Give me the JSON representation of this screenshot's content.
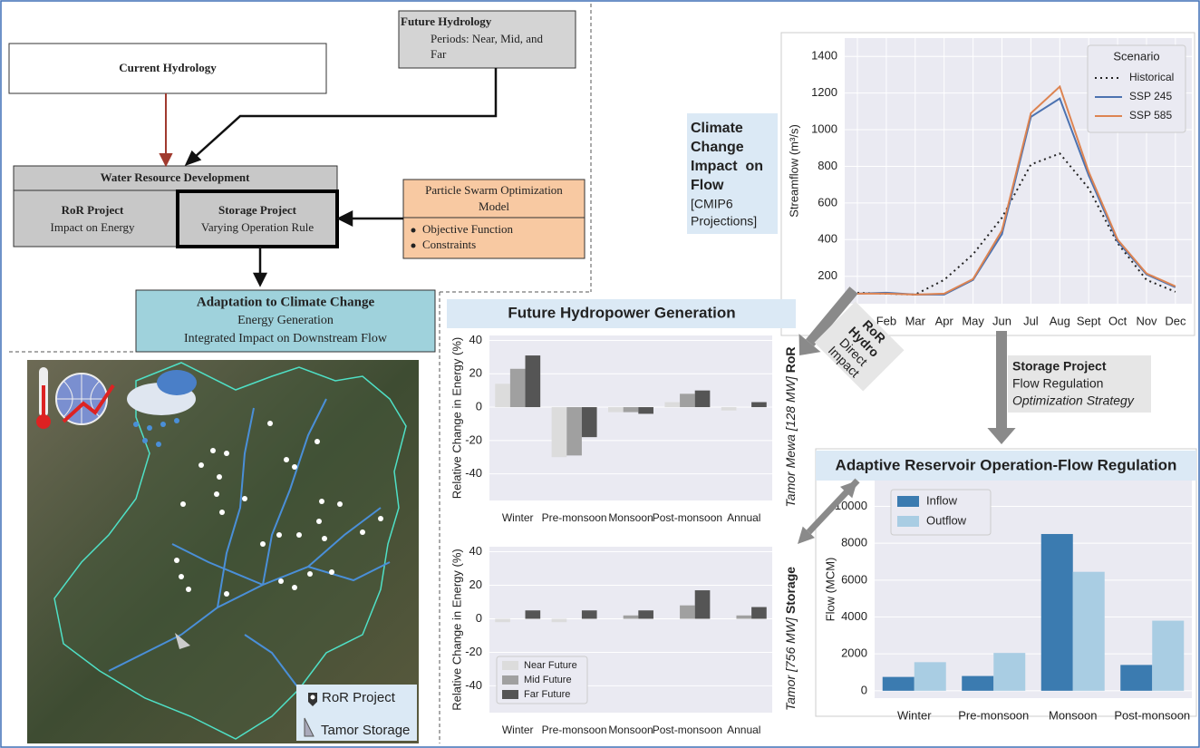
{
  "diagram": {
    "current_hydrology": "Current Hydrology",
    "future_hydrology": {
      "title": "Future Hydrology",
      "lines": [
        "Periods: Near, Mid, and",
        "Far"
      ]
    },
    "water_resource": {
      "title": "Water Resource Development",
      "ror": {
        "title": "RoR Project",
        "text": "Impact on Energy"
      },
      "storage": {
        "title": "Storage Project",
        "text": "Varying Operation Rule"
      }
    },
    "pso": {
      "title_lines": [
        "Particle Swarm Optimization",
        "Model"
      ],
      "bullets": [
        "Objective Function",
        "Constraints"
      ]
    },
    "adaptation": {
      "title": "Adaptation to Climate Change",
      "lines": [
        "Energy Generation",
        "Integrated Impact on Downstream Flow"
      ]
    },
    "climate_box": {
      "title_lines": [
        "Climate",
        "Change",
        "Impact  on",
        "Flow"
      ],
      "sub_lines": [
        "[CMIP6",
        "Projections]"
      ]
    },
    "ror_arrow": {
      "bold_lines": [
        "RoR",
        "Hydro"
      ],
      "lines": [
        "Direct",
        "Impact"
      ]
    },
    "storage_arrow": {
      "title": "Storage Project",
      "text": "Flow Regulation",
      "italic": "Optimization Strategy"
    },
    "map_legend": [
      "RoR Project",
      "Tamor Storage"
    ]
  },
  "chart_data": [
    {
      "type": "line",
      "ylabel": "Streamflow (m³/s)",
      "categories": [
        null,
        "Feb",
        "Mar",
        "Apr",
        "May",
        "Jun",
        "Jul",
        "Aug",
        "Sept",
        "Oct",
        "Nov",
        "Dec"
      ],
      "ylim": [
        50,
        1500
      ],
      "yticks": [
        200,
        400,
        600,
        800,
        1000,
        1200,
        1400
      ],
      "grid": true,
      "legend_title": "Scenario",
      "series": [
        {
          "name": "Historical",
          "color": "#222222",
          "dash": true,
          "values": [
            110,
            105,
            100,
            180,
            320,
            520,
            810,
            870,
            680,
            380,
            180,
            115
          ]
        },
        {
          "name": "SSP 245",
          "color": "#4c72b0",
          "values": [
            105,
            110,
            100,
            100,
            180,
            430,
            1070,
            1170,
            750,
            390,
            210,
            140
          ]
        },
        {
          "name": "SSP 585",
          "color": "#dd8452",
          "values": [
            105,
            105,
            100,
            105,
            185,
            450,
            1090,
            1235,
            770,
            400,
            215,
            145
          ]
        }
      ]
    },
    {
      "type": "bar",
      "title": "Future Hydropower Generation",
      "panels": [
        {
          "side_label": [
            "Tamor Mewa [128 MW]",
            "RoR"
          ],
          "ylabel": "Relative Change in Energy (%)",
          "categories": [
            "Winter",
            "Pre-monsoon",
            "Monsoon",
            "Post-monsoon",
            "Annual"
          ],
          "ylim": [
            -56,
            43
          ],
          "yticks": [
            -40,
            -20,
            0,
            20,
            40
          ],
          "series": [
            {
              "color": "#dcdcdc",
              "values": [
                14,
                -30,
                -3,
                3,
                -2
              ]
            },
            {
              "color": "#a0a0a0",
              "values": [
                23,
                -29,
                -3,
                8,
                0
              ]
            },
            {
              "color": "#555555",
              "values": [
                31,
                -18,
                -4,
                10,
                3
              ]
            }
          ]
        },
        {
          "side_label": [
            "Tamor [756 MW]",
            "Storage"
          ],
          "ylabel": "Relative Change in Energy (%)",
          "categories": [
            "Winter",
            "Pre-monsoon",
            "Monsoon",
            "Post-monsoon",
            "Annual"
          ],
          "ylim": [
            -56,
            43
          ],
          "yticks": [
            -40,
            -20,
            0,
            20,
            40
          ],
          "series": [
            {
              "name": "Near Future",
              "color": "#dcdcdc",
              "values": [
                -2,
                -2,
                0,
                0,
                0
              ]
            },
            {
              "name": "Mid Future",
              "color": "#a0a0a0",
              "values": [
                0,
                0,
                2,
                8,
                2
              ]
            },
            {
              "name": "Far Future",
              "color": "#555555",
              "values": [
                5,
                5,
                5,
                17,
                7
              ]
            }
          ]
        }
      ]
    },
    {
      "type": "bar",
      "title": "Adaptive Reservoir Operation-Flow Regulation",
      "ylabel": "Flow (MCM)",
      "categories": [
        "Winter",
        "Pre-monsoon",
        "Monsoon",
        "Post-monsoon"
      ],
      "ylim": [
        -400,
        11400
      ],
      "yticks": [
        0,
        2000,
        4000,
        6000,
        8000,
        10000
      ],
      "grid": true,
      "series": [
        {
          "name": "Inflow",
          "color": "#3b7bb0",
          "values": [
            750,
            800,
            8500,
            1400
          ]
        },
        {
          "name": "Outflow",
          "color": "#a9cde3",
          "values": [
            1550,
            2050,
            6450,
            3800
          ]
        }
      ]
    }
  ]
}
